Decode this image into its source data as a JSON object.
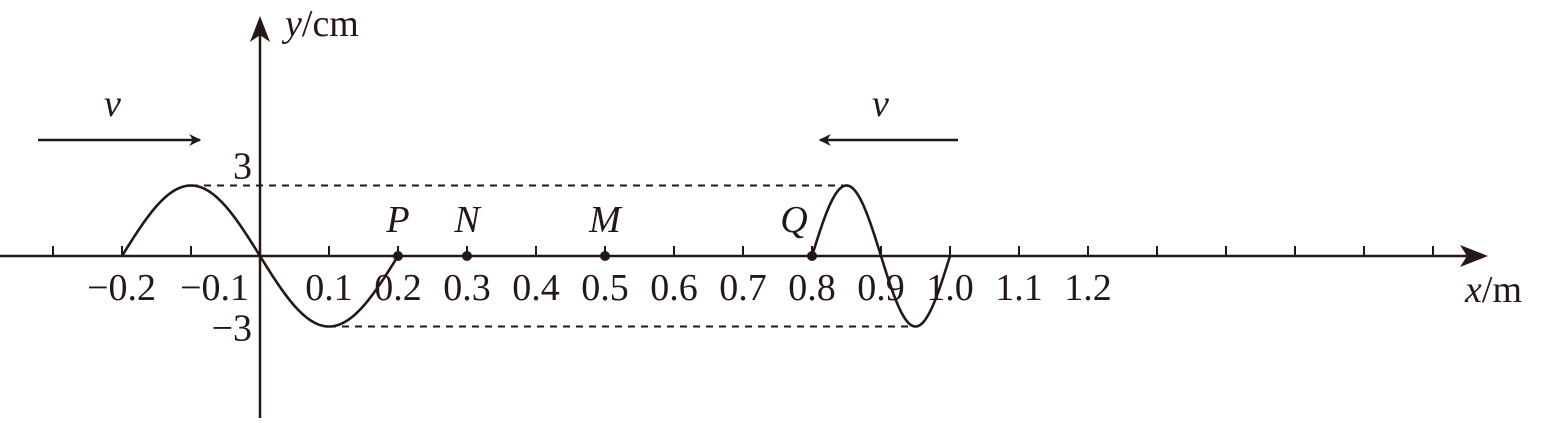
{
  "axes": {
    "x_var": "x",
    "x_unit": "m",
    "y_var": "y",
    "y_unit": "cm",
    "sep": "/",
    "x_ticks": [
      {
        "value": -0.2,
        "label": "−0.2"
      },
      {
        "value": -0.1,
        "label": "−0.1"
      },
      {
        "value": 0.1,
        "label": "0.1"
      },
      {
        "value": 0.2,
        "label": "0.2"
      },
      {
        "value": 0.3,
        "label": "0.3"
      },
      {
        "value": 0.4,
        "label": "0.4"
      },
      {
        "value": 0.5,
        "label": "0.5"
      },
      {
        "value": 0.6,
        "label": "0.6"
      },
      {
        "value": 0.7,
        "label": "0.7"
      },
      {
        "value": 0.8,
        "label": "0.8"
      },
      {
        "value": 0.9,
        "label": "0.9"
      },
      {
        "value": 1.0,
        "label": "1.0"
      },
      {
        "value": 1.1,
        "label": "1.1"
      },
      {
        "value": 1.2,
        "label": "1.2"
      }
    ],
    "y_ticks": [
      {
        "value": 3,
        "label": "3"
      },
      {
        "value": -3,
        "label": "−3"
      }
    ]
  },
  "points": [
    {
      "name": "P",
      "x": 0.2
    },
    {
      "name": "N",
      "x": 0.3
    },
    {
      "name": "M",
      "x": 0.5
    },
    {
      "name": "Q",
      "x": 0.8
    }
  ],
  "waves": {
    "left": {
      "direction": "right",
      "velocity_label": "v",
      "x_start": -0.2,
      "x_end": 0.2,
      "wavelength": 0.4,
      "amplitude": 3
    },
    "right": {
      "direction": "left",
      "velocity_label": "v",
      "x_start": 0.8,
      "x_end": 1.0,
      "wavelength": 0.2,
      "amplitude": 3
    }
  },
  "colors": {
    "ink": "#231815"
  }
}
